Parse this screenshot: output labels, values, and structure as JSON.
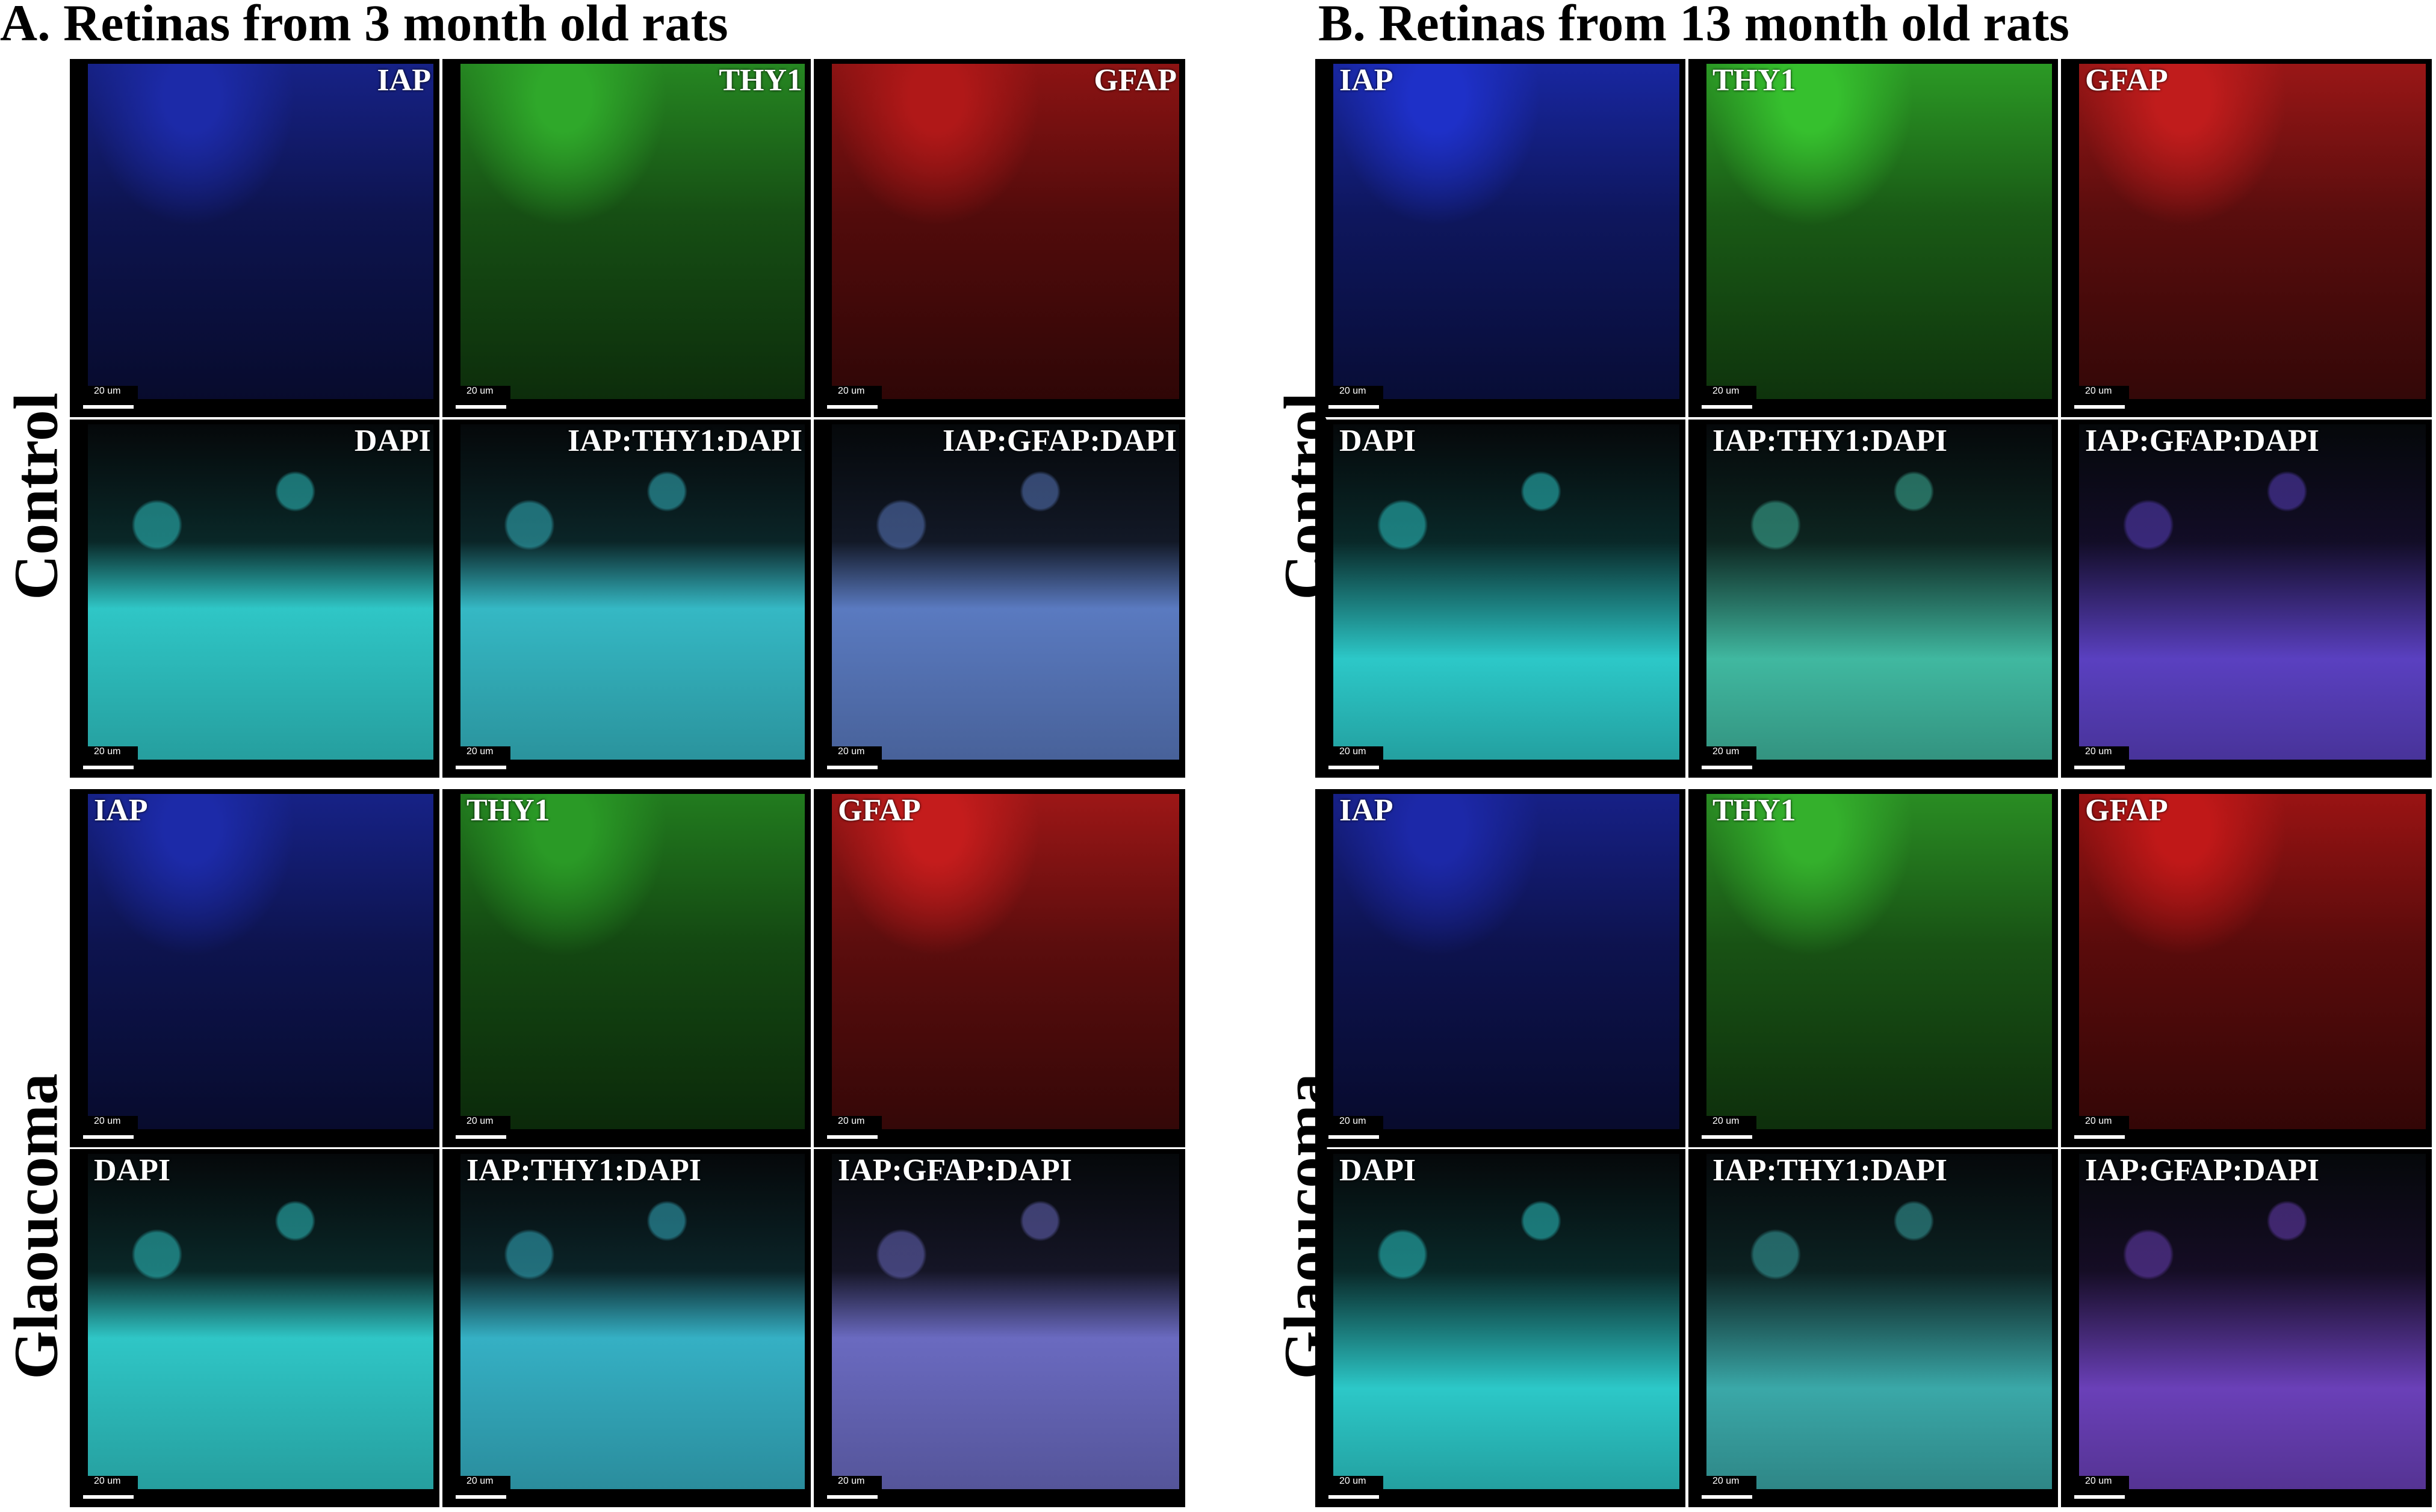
{
  "sections": [
    {
      "title": "A. Retinas from 3 month old rats",
      "groups": [
        {
          "label": "Control",
          "rows": [
            [
              {
                "label": "IAP",
                "color": "#1c2aa8"
              },
              {
                "label": "THY1",
                "color": "#2fa82a"
              },
              {
                "label": "GFAP",
                "color": "#b01818"
              }
            ],
            [
              {
                "label": "DAPI",
                "color": "#2fc6c6"
              },
              {
                "label": "IAP:THY1:DAPI",
                "color": "#35b8c4"
              },
              {
                "label": "IAP:GFAP:DAPI",
                "color": "#5a7ac0"
              }
            ]
          ]
        },
        {
          "label": "Glaoucoma",
          "rows": [
            [
              {
                "label": "IAP",
                "color": "#1c2aa8"
              },
              {
                "label": "THY1",
                "color": "#2a9a26"
              },
              {
                "label": "GFAP",
                "color": "#c41c1c"
              }
            ],
            [
              {
                "label": "DAPI",
                "color": "#2fc6c6"
              },
              {
                "label": "IAP:THY1:DAPI",
                "color": "#35b0c4"
              },
              {
                "label": "IAP:GFAP:DAPI",
                "color": "#6a6ac0"
              }
            ]
          ]
        }
      ]
    },
    {
      "title": "B. Retinas from 13 month old rats",
      "groups": [
        {
          "label": "Control",
          "rows": [
            [
              {
                "label": "IAP",
                "color": "#1e30c8"
              },
              {
                "label": "THY1",
                "color": "#36c02e"
              },
              {
                "label": "GFAP",
                "color": "#c01c1c"
              }
            ],
            [
              {
                "label": "DAPI",
                "color": "#2cc8c8"
              },
              {
                "label": "IAP:THY1:DAPI",
                "color": "#40b8a0"
              },
              {
                "label": "IAP:GFAP:DAPI",
                "color": "#5a40c0"
              }
            ]
          ]
        },
        {
          "label": "Glaoucoma",
          "rows": [
            [
              {
                "label": "IAP",
                "color": "#1c28a8"
              },
              {
                "label": "THY1",
                "color": "#34b02c"
              },
              {
                "label": "GFAP",
                "color": "#c01818"
              }
            ],
            [
              {
                "label": "DAPI",
                "color": "#2cc8c8"
              },
              {
                "label": "IAP:THY1:DAPI",
                "color": "#3aa8a8"
              },
              {
                "label": "IAP:GFAP:DAPI",
                "color": "#6a40b8"
              }
            ]
          ]
        }
      ]
    }
  ],
  "scale_bar": "20 um"
}
